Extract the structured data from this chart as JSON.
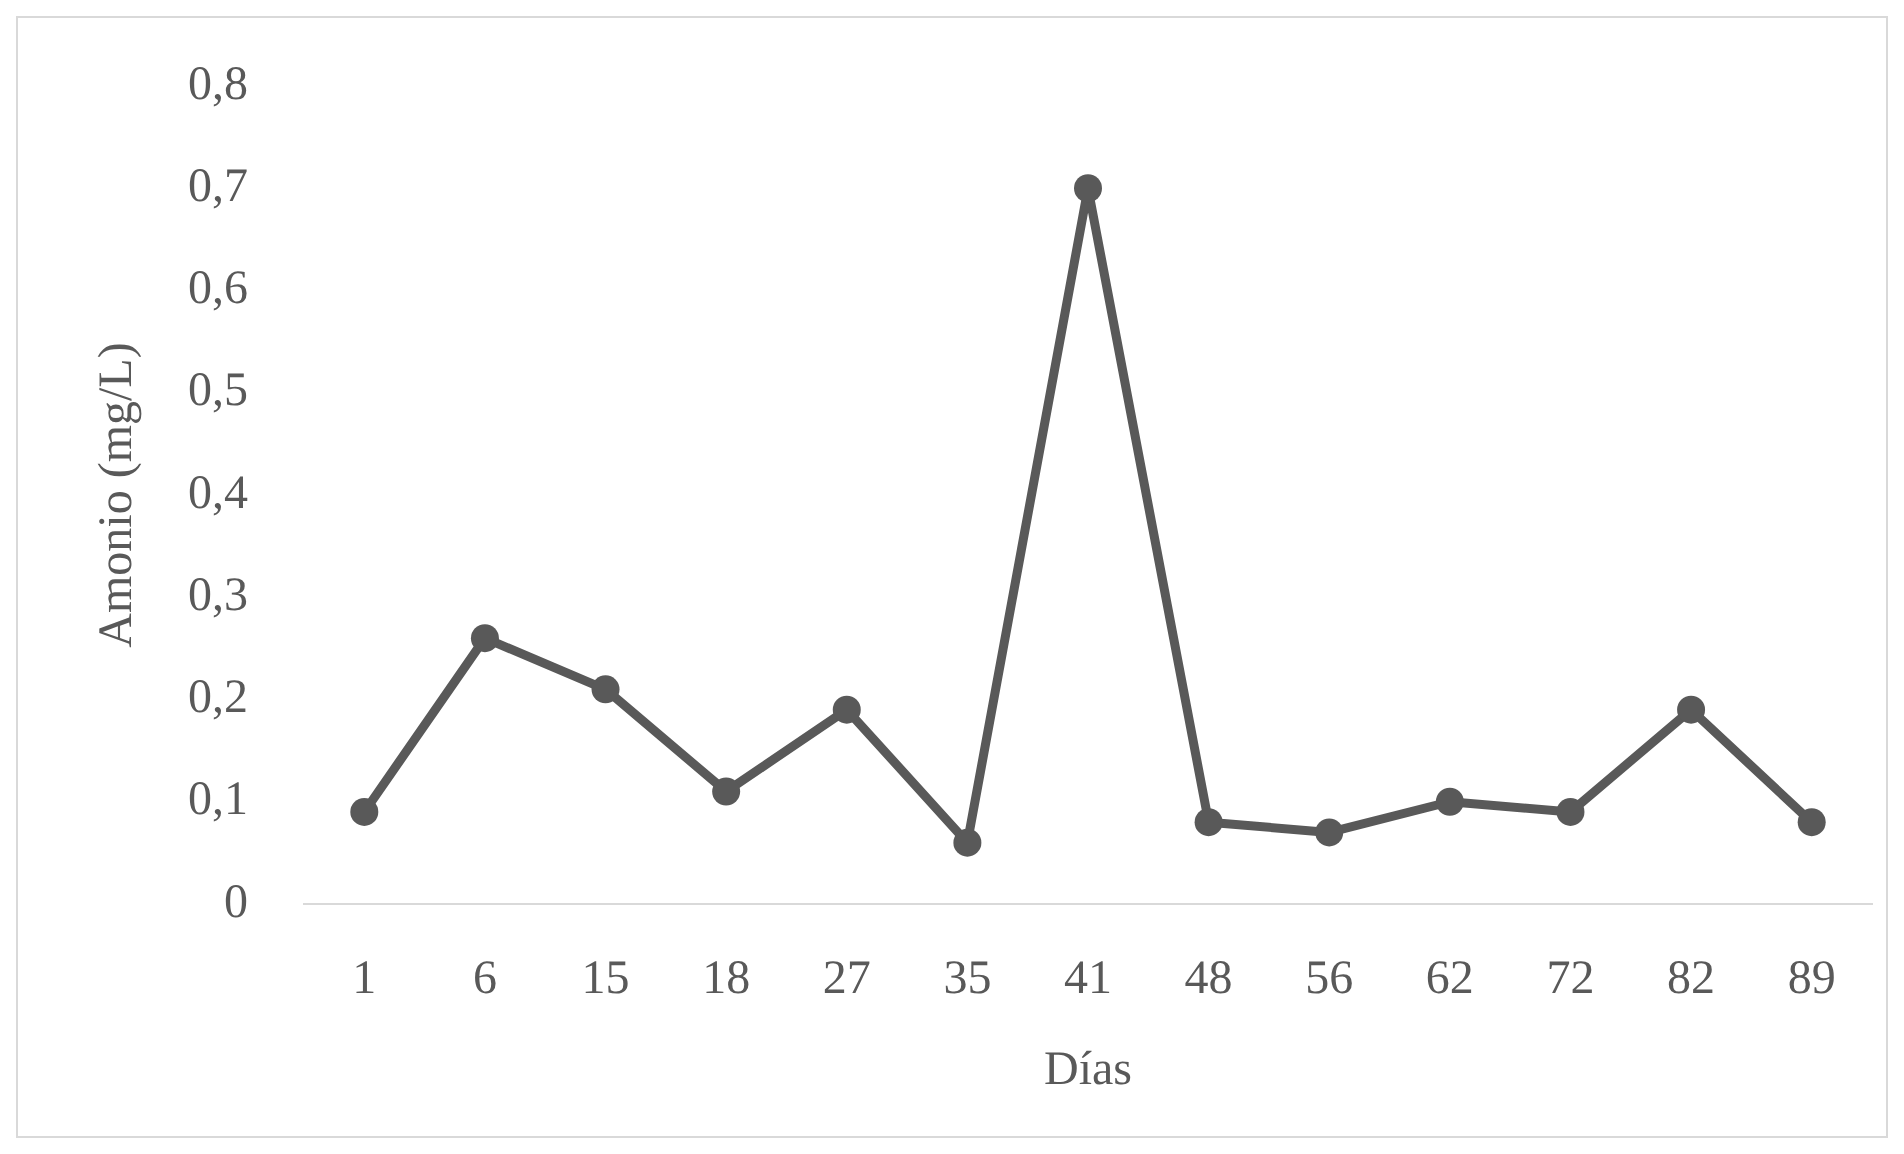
{
  "chart_data": {
    "type": "line",
    "xlabel": "Días",
    "ylabel": "Amonio (mg/L)",
    "categories": [
      "1",
      "6",
      "15",
      "18",
      "27",
      "35",
      "41",
      "48",
      "56",
      "62",
      "72",
      "82",
      "89"
    ],
    "series": [
      {
        "color": "#595959",
        "values": [
          0.09,
          0.26,
          0.21,
          0.11,
          0.19,
          0.06,
          0.7,
          0.08,
          0.07,
          0.1,
          0.09,
          0.19,
          0.08
        ]
      }
    ],
    "ylim": [
      0,
      0.8
    ],
    "yticks": [
      0,
      {
        "value": 0.1,
        "label": "0,1"
      },
      {
        "value": 0.2,
        "label": "0,2"
      },
      {
        "value": 0.3,
        "label": "0,3"
      },
      {
        "value": 0.4,
        "label": "0,4"
      },
      {
        "value": 0.5,
        "label": "0,5"
      },
      {
        "value": 0.6,
        "label": "0,6"
      },
      {
        "value": 0.7,
        "label": "0,7"
      },
      {
        "value": 0.8,
        "label": "0,8"
      }
    ],
    "grid": false,
    "legend": false,
    "marker": "circle",
    "line_style": "solid"
  }
}
